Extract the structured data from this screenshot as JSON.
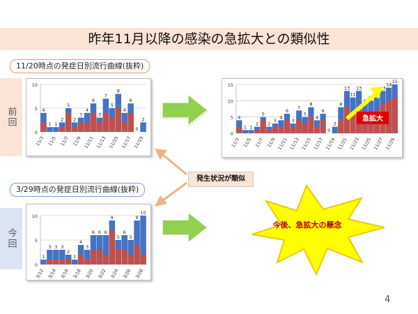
{
  "slide": {
    "title": "昨年11月以降の感染の急拡大との類似性",
    "page_number": "4"
  },
  "labels": {
    "prev_period_title": "11/20時点の発症日別流行曲線(抜粋)",
    "current_period_title": "3/29時点の発症日別流行曲線(抜粋)",
    "side_prev": "前回",
    "side_current": "今回",
    "similar_badge": "発生状況が類似",
    "expansion_callout": "急拡大",
    "concern_callout": "今後、急拡大の懸念"
  },
  "colors": {
    "bar_total": "#4472c4",
    "bar_sub": "#c0504d",
    "arrow_green": "#92d050",
    "arrow_orange": "#f4b183",
    "burst_fill": "#ffff00",
    "burst_stroke": "#f0c800",
    "callout_red": "#c00000"
  },
  "icons": {
    "right_arrow": "green-right-arrow-icon",
    "diagonal_arrows": "orange-double-arrow-icon",
    "burst": "explosion-burst-icon",
    "trend_arrow": "yellow-trend-arrow-icon"
  },
  "chart_data": [
    {
      "type": "bar",
      "subtype": "stacked",
      "xlabel": "",
      "ylabel": "",
      "ylim": [
        0,
        10
      ],
      "yticks": [
        0,
        5,
        10
      ],
      "grid": true,
      "categories": [
        "11/3",
        "11/4",
        "11/5",
        "11/6",
        "11/7",
        "11/8",
        "11/9",
        "11/10",
        "11/11",
        "11/12",
        "11/13",
        "11/14",
        "11/15",
        "11/16",
        "11/17",
        "11/18",
        "11/19"
      ],
      "tick_labels": [
        "11/3",
        "",
        "11/5",
        "",
        "11/7",
        "",
        "11/9",
        "",
        "11/11",
        "",
        "11/13",
        "",
        "11/15",
        "",
        "11/17",
        "",
        "11/19"
      ],
      "totals": [
        4,
        1,
        1,
        2,
        5,
        2,
        3,
        4,
        6,
        3,
        7,
        5,
        8,
        4,
        6,
        0,
        2
      ],
      "series": [
        {
          "values": [
            2,
            0,
            0,
            1,
            4,
            1,
            2,
            2,
            4,
            2,
            4,
            3,
            5,
            2,
            4,
            0,
            0
          ]
        },
        {
          "values": [
            2,
            1,
            1,
            1,
            1,
            1,
            1,
            2,
            2,
            1,
            3,
            2,
            3,
            2,
            2,
            0,
            2
          ]
        }
      ]
    },
    {
      "type": "bar",
      "subtype": "stacked",
      "xlabel": "",
      "ylabel": "",
      "ylim": [
        0,
        15
      ],
      "yticks": [
        0,
        5,
        10,
        15
      ],
      "grid": true,
      "categories": [
        "11/3",
        "11/4",
        "11/5",
        "11/6",
        "11/7",
        "11/8",
        "11/9",
        "11/10",
        "11/11",
        "11/12",
        "11/13",
        "11/14",
        "11/15",
        "11/16",
        "11/17",
        "11/18",
        "11/19",
        "11/20",
        "11/21",
        "11/22",
        "11/23",
        "11/24",
        "11/25",
        "11/26",
        "11/27",
        "11/28",
        "11/29"
      ],
      "tick_labels": [
        "11/3",
        "",
        "11/5",
        "",
        "11/7",
        "",
        "11/9",
        "",
        "11/11",
        "",
        "11/13",
        "",
        "11/15",
        "",
        "11/17",
        "",
        "11/19",
        "",
        "11/21",
        "",
        "11/23",
        "",
        "11/25",
        "",
        "11/27",
        "",
        "11/29"
      ],
      "totals": [
        4,
        1,
        1,
        2,
        5,
        2,
        3,
        4,
        6,
        3,
        7,
        5,
        8,
        4,
        6,
        0,
        2,
        8,
        13,
        11,
        13,
        9,
        10,
        11,
        13,
        14,
        15
      ],
      "series": [
        {
          "values": [
            2,
            0,
            0,
            1,
            4,
            1,
            2,
            2,
            4,
            2,
            4,
            3,
            5,
            2,
            4,
            0,
            0,
            4,
            8,
            6,
            8,
            5,
            6,
            7,
            9,
            10,
            11
          ]
        },
        {
          "values": [
            2,
            1,
            1,
            1,
            1,
            1,
            1,
            2,
            2,
            1,
            3,
            2,
            3,
            2,
            2,
            0,
            2,
            4,
            5,
            5,
            5,
            4,
            4,
            4,
            4,
            4,
            4
          ]
        }
      ]
    },
    {
      "type": "bar",
      "subtype": "stacked",
      "xlabel": "",
      "ylabel": "",
      "ylim": [
        0,
        10
      ],
      "yticks": [
        0,
        5,
        10
      ],
      "grid": true,
      "categories": [
        "3/12",
        "3/13",
        "3/14",
        "3/15",
        "3/16",
        "3/17",
        "3/18",
        "3/19",
        "3/20",
        "3/21",
        "3/22",
        "3/23",
        "3/24",
        "3/25",
        "3/26",
        "3/27",
        "3/28"
      ],
      "tick_labels": [
        "3/12",
        "",
        "3/14",
        "",
        "3/16",
        "",
        "3/18",
        "",
        "3/20",
        "",
        "3/22",
        "",
        "3/24",
        "",
        "3/26",
        "",
        "3/28"
      ],
      "totals": [
        1,
        3,
        3,
        3,
        2,
        1,
        4,
        3,
        6,
        6,
        6,
        9,
        5,
        6,
        5,
        9,
        10
      ],
      "series": [
        {
          "values": [
            0,
            1,
            1,
            1,
            1,
            0,
            2,
            1,
            3,
            3,
            2,
            7,
            3,
            3,
            2,
            4,
            2
          ]
        },
        {
          "values": [
            1,
            2,
            2,
            2,
            1,
            1,
            2,
            2,
            3,
            3,
            4,
            2,
            2,
            3,
            3,
            5,
            8
          ]
        }
      ]
    }
  ]
}
